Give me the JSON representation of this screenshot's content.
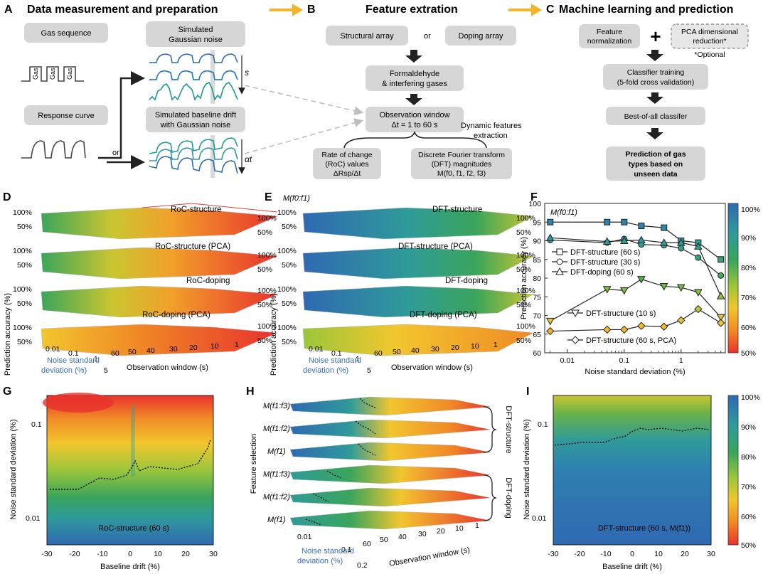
{
  "panels": {
    "A": {
      "letter": "A",
      "title": "Data measurement and preparation",
      "gas_sequence": "Gas sequence",
      "gas_word": "Gas",
      "response_curve": "Response curve",
      "sim_noise": [
        "Simulated",
        "Gaussian noise"
      ],
      "sim_drift": [
        "Simulated baseline drift",
        "with Gaussian noise"
      ],
      "or": "or",
      "s": "s",
      "alpha_t": "αt"
    },
    "B": {
      "letter": "B",
      "title": "Feature extration",
      "structural": "Structural array",
      "or": "or",
      "doping": "Doping array",
      "formaldehyde": [
        "Formaldehyde",
        "& interfering gases"
      ],
      "obs_window": [
        "Observation window",
        "Δt = 1 to 60 s"
      ],
      "dynamic": [
        "Dynamic features",
        "extraction"
      ],
      "roc": [
        "Rate of change",
        "(RoC) values",
        "ΔRsp/Δt"
      ],
      "dft": [
        "Discrete Fourier transform",
        "(DFT) magnitudes",
        "M(f0, f1, f2, f3)"
      ]
    },
    "C": {
      "letter": "C",
      "title": "Machine learning and prediction",
      "feature_norm": [
        "Feature",
        "normalization"
      ],
      "plus": "+",
      "pca": [
        "PCA dimensional",
        "reduction*"
      ],
      "optional": "*Optional",
      "classifier": [
        "Classifier training",
        "(5-fold cross validation)"
      ],
      "best": "Best-of-all classifer",
      "prediction": [
        "Prediction of gas",
        "types based on",
        "unseen data"
      ]
    },
    "D": {
      "letter": "D",
      "ylabel": "Prediction accuracy (%)",
      "layers": [
        "RoC-structure",
        "RoC-structure (PCA)",
        "RoC-doping",
        "RoC-doping (PCA)"
      ],
      "pct100": "100%",
      "pct50": "50%",
      "noise_ticks": [
        "0.01",
        "0.1",
        "1",
        "5"
      ],
      "window_ticks": [
        "60",
        "50",
        "40",
        "30",
        "20",
        "10",
        "1"
      ],
      "xlabel_noise": [
        "Noise standard",
        "deviation (%)"
      ],
      "xlabel_window": "Observation window (s)"
    },
    "E": {
      "letter": "E",
      "ylabel": "Prediction accuracy (%)",
      "feature": "M(f0:f1)",
      "layers": [
        "DFT-structure",
        "DFT-structure (PCA)",
        "DFT-doping",
        "DFT-doping (PCA)"
      ],
      "pct100": "100%",
      "pct50": "50%",
      "noise_ticks": [
        "0.01",
        "0.1",
        "1",
        "5"
      ],
      "window_ticks": [
        "60",
        "50",
        "40",
        "30",
        "20",
        "10",
        "1"
      ],
      "xlabel_noise": [
        "Noise standard",
        "deviation (%)"
      ],
      "xlabel_window": "Observation window (s)"
    },
    "G": {
      "letter": "G",
      "ylabel": "Noise standard deviation (%)",
      "xlabel": "Baseline drift (%)",
      "annotation": "RoC-structure (60 s)",
      "yticks": [
        "0.1",
        "0.01"
      ],
      "xticks": [
        "-30",
        "-20",
        "-10",
        "0",
        "10",
        "20",
        "30"
      ]
    },
    "H": {
      "letter": "H",
      "ylabel": "Feature selection",
      "features": [
        "M(f1:f3)",
        "M(f1:f2)",
        "M(f1)",
        "M(f1:f3)",
        "M(f1:f2)",
        "M(f1)"
      ],
      "group_structure": "DFT-structure",
      "group_doping": "DFT-doping",
      "noise_ticks": [
        "0.01",
        "0.1",
        "0.2"
      ],
      "window_ticks": [
        "60",
        "50",
        "40",
        "30",
        "20",
        "10",
        "1"
      ],
      "xlabel_noise": [
        "Noise standard",
        "deviation (%)"
      ],
      "xlabel_window": "Observation window (s)"
    },
    "I": {
      "letter": "I",
      "ylabel": "Noise standard deviation (%)",
      "xlabel": "Baseline drift (%)",
      "annotation": "DFT-structure (60 s, M(f1))",
      "yticks": [
        "0.1",
        "0.01"
      ],
      "xticks": [
        "-30",
        "-20",
        "-10",
        "0",
        "10",
        "20",
        "30"
      ]
    },
    "F": {
      "letter": "F",
      "feature_label": "M(f0:f1)"
    }
  },
  "colorbar": {
    "ticks": [
      "100%",
      "90%",
      "80%",
      "70%",
      "60%",
      "50%"
    ],
    "colors": [
      "#2f69b2",
      "#2f9a9a",
      "#3aa55b",
      "#9ac63a",
      "#f2c62e",
      "#f08a26",
      "#e8322d"
    ]
  },
  "chart_data": {
    "type": "line",
    "title": "M(f0:f1)",
    "xlabel": "Noise standard deviation (%)",
    "ylabel": "Prediction accuracy (%)",
    "xscale": "log",
    "xlim": [
      0.004,
      6
    ],
    "ylim": [
      60,
      100
    ],
    "xticks": [
      "0.01",
      "0.1",
      "1"
    ],
    "yticks": [
      "60",
      "65",
      "70",
      "75",
      "80",
      "85",
      "90",
      "95",
      "100"
    ],
    "x": [
      0.005,
      0.05,
      0.1,
      0.2,
      0.5,
      1,
      2,
      5
    ],
    "series": [
      {
        "name": "DFT-structure (60 s)",
        "marker": "square",
        "values": [
          95,
          95,
          95,
          94,
          93.5,
          90,
          89.5,
          85
        ]
      },
      {
        "name": "DFT-structure (30 s)",
        "marker": "circle",
        "values": [
          90.2,
          89.5,
          90.5,
          89,
          88.8,
          88,
          85.5,
          80.7
        ]
      },
      {
        "name": "DFT-doping (60 s)",
        "marker": "triangle-up",
        "values": [
          90.8,
          89.8,
          90,
          90.2,
          89.5,
          89.5,
          88.5,
          75.2
        ]
      },
      {
        "name": "DFT-structure (10 s)",
        "marker": "triangle-down",
        "values": [
          68.5,
          77,
          76.7,
          79.7,
          77.8,
          77.5,
          76.2,
          69.5
        ]
      },
      {
        "name": "DFT-structure (60 s, PCA)",
        "marker": "diamond",
        "values": [
          65.8,
          66.2,
          66.2,
          67.2,
          67,
          68.7,
          71.7,
          68
        ]
      }
    ],
    "colors": {
      "top": "#2f69b2",
      "bottom": "#e8322d"
    }
  }
}
